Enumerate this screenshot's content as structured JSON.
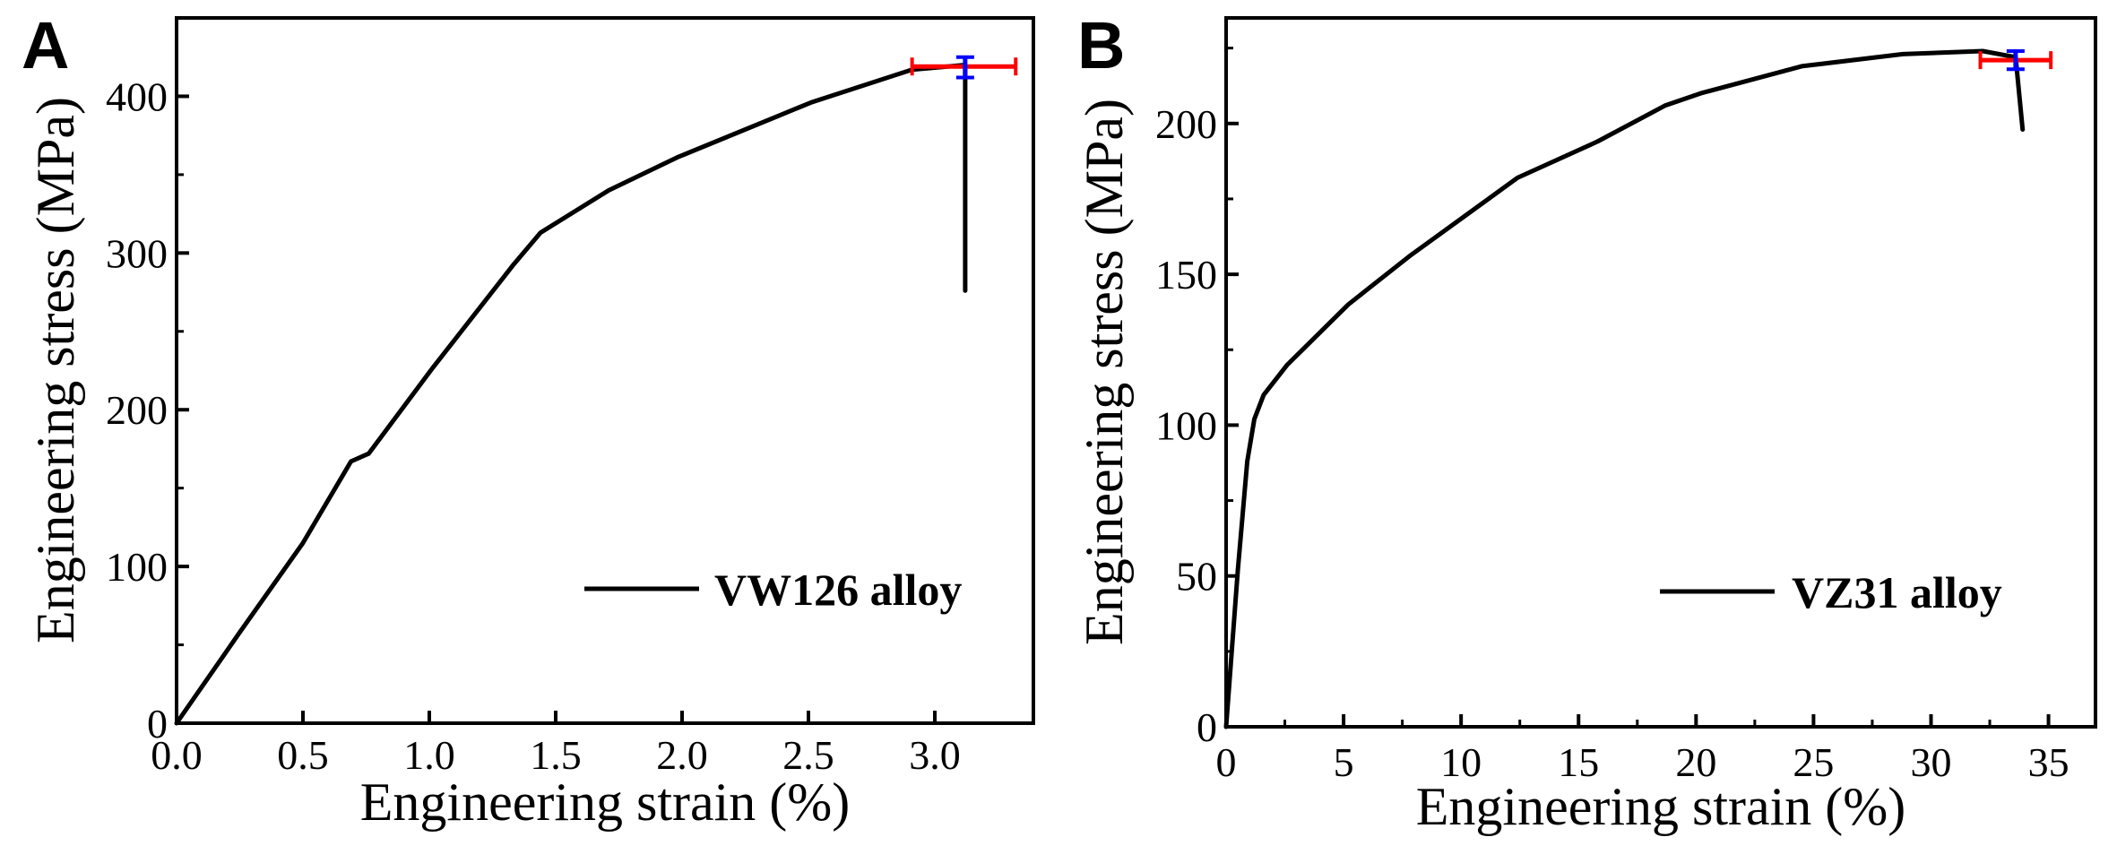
{
  "chart_data": [
    {
      "type": "line",
      "panel_label": "A",
      "xlabel": "Engineering strain (%)",
      "ylabel": "Engineering stress (MPa)",
      "xlim": [
        0,
        3.39
      ],
      "ylim": [
        0,
        450
      ],
      "xticks": [
        0.0,
        0.5,
        1.0,
        1.5,
        2.0,
        2.5,
        3.0
      ],
      "xtick_labels": [
        "0.0",
        "0.5",
        "1.0",
        "1.5",
        "2.0",
        "2.5",
        "3.0"
      ],
      "yticks": [
        0,
        100,
        200,
        300,
        400
      ],
      "ytick_labels": [
        "0",
        "100",
        "200",
        "300",
        "400"
      ],
      "y_minor_step": 50,
      "x_minor_step": null,
      "grid": false,
      "legend_position": "bottom-right",
      "series": [
        {
          "name": "VW126 alloy",
          "color": "#000000",
          "x": [
            0,
            0.25,
            0.5,
            0.69,
            0.76,
            1.01,
            1.33,
            1.44,
            1.71,
            1.98,
            2.51,
            2.91,
            3.12,
            3.12
          ],
          "y": [
            0,
            58,
            115,
            167,
            172,
            226,
            292,
            313,
            340,
            361,
            396,
            417,
            420,
            276
          ]
        }
      ],
      "error_bars": {
        "x": 3.12,
        "y": 419,
        "x_range": [
          2.91,
          3.32
        ],
        "x_color": "#ff0000",
        "y_range": [
          412,
          425
        ],
        "y_color": "#0000ff"
      }
    },
    {
      "type": "line",
      "panel_label": "B",
      "xlabel": "Engineering strain (%)",
      "ylabel": "Engineering stress (MPa)",
      "xlim": [
        0,
        37
      ],
      "ylim": [
        0,
        235
      ],
      "xticks": [
        0,
        5,
        10,
        15,
        20,
        25,
        30,
        35
      ],
      "xtick_labels": [
        "0",
        "5",
        "10",
        "15",
        "20",
        "25",
        "30",
        "35"
      ],
      "yticks": [
        0,
        50,
        100,
        150,
        200
      ],
      "ytick_labels": [
        "0",
        "50",
        "100",
        "150",
        "200"
      ],
      "y_minor_step": 25,
      "x_minor_step": 2.5,
      "grid": false,
      "legend_position": "bottom-right",
      "series": [
        {
          "name": "VZ31 alloy",
          "color": "#000000",
          "x": [
            0,
            0.5,
            0.9,
            1.2,
            1.6,
            2.6,
            5.2,
            7.8,
            10.1,
            12.4,
            15.8,
            18.7,
            20.2,
            24.5,
            28.8,
            32.2,
            33.6,
            33.9
          ],
          "y": [
            0,
            52,
            88,
            102,
            110,
            120,
            140,
            156,
            169,
            182,
            194,
            206,
            210,
            219,
            223,
            224,
            222,
            198
          ]
        }
      ],
      "error_bars": {
        "x": 33.6,
        "y": 221,
        "x_range": [
          32.1,
          35.1
        ],
        "x_color": "#ff0000",
        "y_range": [
          218,
          224
        ],
        "y_color": "#0000ff"
      }
    }
  ]
}
